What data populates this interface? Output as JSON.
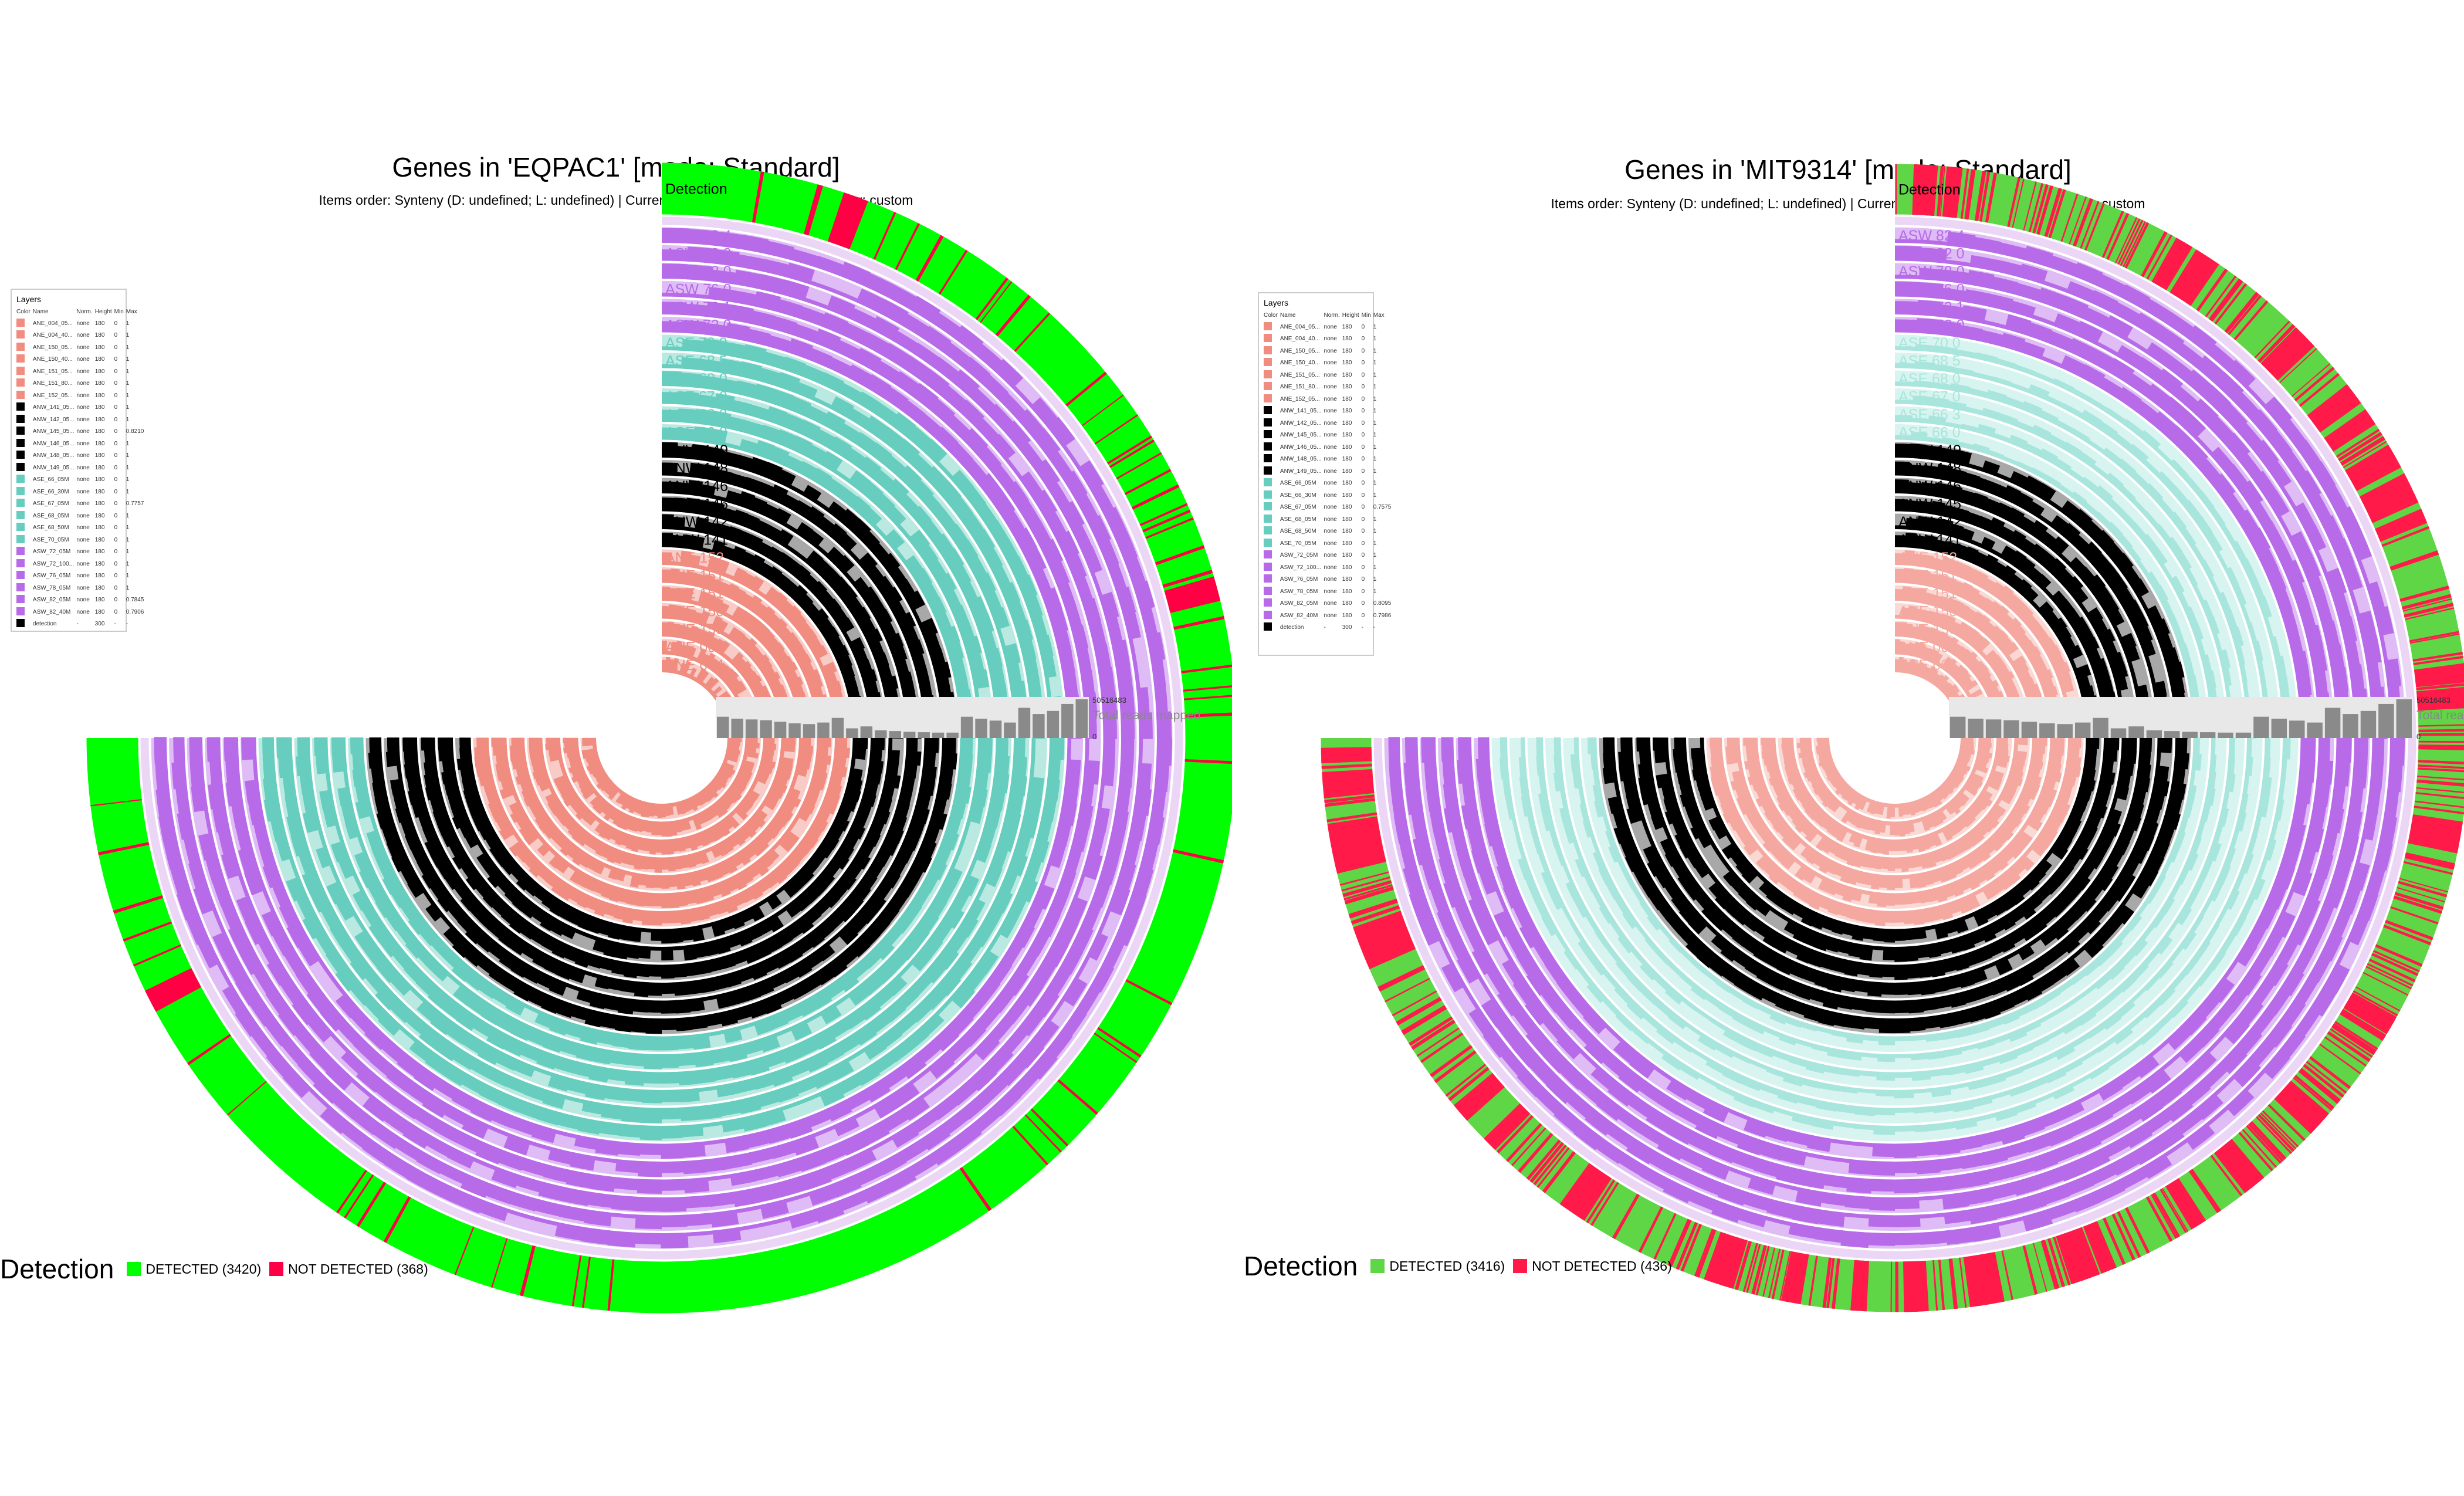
{
  "panels": [
    {
      "title": "Genes in 'EQPAC1' [mode: Standard]",
      "subtitle": "Items order: Synteny (D: undefined; L: undefined) | Current view: detection | Samples order: custom",
      "layers_title": "Layers",
      "layers_header": {
        "color": "Color",
        "name": "Name",
        "norm": "Norm.",
        "height": "Height",
        "min": "Min",
        "max": "Max"
      },
      "layers": [
        {
          "name": "ANE_004_05...",
          "norm": "none",
          "height": "180",
          "min": "0",
          "max": "1",
          "color": "#f08c80"
        },
        {
          "name": "ANE_004_40...",
          "norm": "none",
          "height": "180",
          "min": "0",
          "max": "1",
          "color": "#f08c80"
        },
        {
          "name": "ANE_150_05...",
          "norm": "none",
          "height": "180",
          "min": "0",
          "max": "1",
          "color": "#f08c80"
        },
        {
          "name": "ANE_150_40...",
          "norm": "none",
          "height": "180",
          "min": "0",
          "max": "1",
          "color": "#f08c80"
        },
        {
          "name": "ANE_151_05...",
          "norm": "none",
          "height": "180",
          "min": "0",
          "max": "1",
          "color": "#f08c80"
        },
        {
          "name": "ANE_151_80...",
          "norm": "none",
          "height": "180",
          "min": "0",
          "max": "1",
          "color": "#f08c80"
        },
        {
          "name": "ANE_152_05...",
          "norm": "none",
          "height": "180",
          "min": "0",
          "max": "1",
          "color": "#f08c80"
        },
        {
          "name": "ANW_141_05...",
          "norm": "none",
          "height": "180",
          "min": "0",
          "max": "1",
          "color": "#000000"
        },
        {
          "name": "ANW_142_05...",
          "norm": "none",
          "height": "180",
          "min": "0",
          "max": "1",
          "color": "#000000"
        },
        {
          "name": "ANW_145_05...",
          "norm": "none",
          "height": "180",
          "min": "0",
          "max": "0.8210",
          "color": "#000000"
        },
        {
          "name": "ANW_146_05...",
          "norm": "none",
          "height": "180",
          "min": "0",
          "max": "1",
          "color": "#000000"
        },
        {
          "name": "ANW_148_05...",
          "norm": "none",
          "height": "180",
          "min": "0",
          "max": "1",
          "color": "#000000"
        },
        {
          "name": "ANW_149_05...",
          "norm": "none",
          "height": "180",
          "min": "0",
          "max": "1",
          "color": "#000000"
        },
        {
          "name": "ASE_66_05M",
          "norm": "none",
          "height": "180",
          "min": "0",
          "max": "1",
          "color": "#66cdbf"
        },
        {
          "name": "ASE_66_30M",
          "norm": "none",
          "height": "180",
          "min": "0",
          "max": "1",
          "color": "#66cdbf"
        },
        {
          "name": "ASE_67_05M",
          "norm": "none",
          "height": "180",
          "min": "0",
          "max": "0.7757",
          "color": "#66cdbf"
        },
        {
          "name": "ASE_68_05M",
          "norm": "none",
          "height": "180",
          "min": "0",
          "max": "1",
          "color": "#66cdbf"
        },
        {
          "name": "ASE_68_50M",
          "norm": "none",
          "height": "180",
          "min": "0",
          "max": "1",
          "color": "#66cdbf"
        },
        {
          "name": "ASE_70_05M",
          "norm": "none",
          "height": "180",
          "min": "0",
          "max": "1",
          "color": "#66cdbf"
        },
        {
          "name": "ASW_72_05M",
          "norm": "none",
          "height": "180",
          "min": "0",
          "max": "1",
          "color": "#b86be8"
        },
        {
          "name": "ASW_72_100...",
          "norm": "none",
          "height": "180",
          "min": "0",
          "max": "1",
          "color": "#b86be8"
        },
        {
          "name": "ASW_76_05M",
          "norm": "none",
          "height": "180",
          "min": "0",
          "max": "1",
          "color": "#b86be8"
        },
        {
          "name": "ASW_78_05M",
          "norm": "none",
          "height": "180",
          "min": "0",
          "max": "1",
          "color": "#b86be8"
        },
        {
          "name": "ASW_82_05M",
          "norm": "none",
          "height": "180",
          "min": "0",
          "max": "0.7845",
          "color": "#b86be8"
        },
        {
          "name": "ASW_82_40M",
          "norm": "none",
          "height": "180",
          "min": "0",
          "max": "0.7906",
          "color": "#b86be8"
        },
        {
          "name": "detection",
          "norm": "-",
          "height": "300",
          "min": "-",
          "max": "-",
          "color": "#000000"
        }
      ],
      "layer_labels": [
        "Detection",
        "ASW 82 4",
        "ASW 82 0",
        "ASW 78 0",
        "ASW 76 0",
        "ASW 72 1",
        "ASW 72 0",
        "ASE 70 0",
        "ASE 68 5",
        "ASE 68 0",
        "ASE 67 0",
        "ASE 66 3",
        "ASE 66 0",
        "ANW 149",
        "ANW 148",
        "ANW 146",
        "ANW 145",
        "ANW 142",
        "ANW 141",
        "ANE 152",
        "ANE 151",
        "ANE 151",
        "ANE 150",
        "ANE 150",
        "ANE 004",
        "ANE 004"
      ],
      "total_reads_max": "50516483",
      "total_reads_min": "0",
      "total_reads_label": "Total reads mapped",
      "bar_values": [
        0.55,
        0.5,
        0.48,
        0.46,
        0.42,
        0.38,
        0.36,
        0.4,
        0.52,
        0.25,
        0.3,
        0.2,
        0.18,
        0.16,
        0.15,
        0.14,
        0.14,
        0.55,
        0.5,
        0.45,
        0.4,
        0.78,
        0.62,
        0.7,
        0.88,
        1.0
      ],
      "detection_title": "Detection",
      "detected_label": "DETECTED (3420)",
      "not_detected_label": "NOT DETECTED (368)",
      "colors": {
        "detected": "#00ff00",
        "not_detected": "#ff0044",
        "ane": "#f08c80",
        "anw": "#000000",
        "ase": "#66cdbf",
        "asw": "#b86be8"
      }
    },
    {
      "title": "Genes in 'MIT9314' [mode: Standard]",
      "subtitle": "Items order: Synteny (D: undefined; L: undefined) | Current view: detection | Samples order: custom",
      "layers_title": "Layers",
      "layers_header": {
        "color": "Color",
        "name": "Name",
        "norm": "Norm.",
        "height": "Height",
        "min": "Min",
        "max": "Max"
      },
      "layers": [
        {
          "name": "ANE_004_05...",
          "norm": "none",
          "height": "180",
          "min": "0",
          "max": "1",
          "color": "#f08c80"
        },
        {
          "name": "ANE_004_40...",
          "norm": "none",
          "height": "180",
          "min": "0",
          "max": "1",
          "color": "#f08c80"
        },
        {
          "name": "ANE_150_05...",
          "norm": "none",
          "height": "180",
          "min": "0",
          "max": "1",
          "color": "#f08c80"
        },
        {
          "name": "ANE_150_40...",
          "norm": "none",
          "height": "180",
          "min": "0",
          "max": "1",
          "color": "#f08c80"
        },
        {
          "name": "ANE_151_05...",
          "norm": "none",
          "height": "180",
          "min": "0",
          "max": "1",
          "color": "#f08c80"
        },
        {
          "name": "ANE_151_80...",
          "norm": "none",
          "height": "180",
          "min": "0",
          "max": "1",
          "color": "#f08c80"
        },
        {
          "name": "ANE_152_05...",
          "norm": "none",
          "height": "180",
          "min": "0",
          "max": "1",
          "color": "#f08c80"
        },
        {
          "name": "ANW_141_05...",
          "norm": "none",
          "height": "180",
          "min": "0",
          "max": "1",
          "color": "#000000"
        },
        {
          "name": "ANW_142_05...",
          "norm": "none",
          "height": "180",
          "min": "0",
          "max": "1",
          "color": "#000000"
        },
        {
          "name": "ANW_145_05...",
          "norm": "none",
          "height": "180",
          "min": "0",
          "max": "1",
          "color": "#000000"
        },
        {
          "name": "ANW_146_05...",
          "norm": "none",
          "height": "180",
          "min": "0",
          "max": "1",
          "color": "#000000"
        },
        {
          "name": "ANW_148_05...",
          "norm": "none",
          "height": "180",
          "min": "0",
          "max": "1",
          "color": "#000000"
        },
        {
          "name": "ANW_149_05...",
          "norm": "none",
          "height": "180",
          "min": "0",
          "max": "1",
          "color": "#000000"
        },
        {
          "name": "ASE_66_05M",
          "norm": "none",
          "height": "180",
          "min": "0",
          "max": "1",
          "color": "#66cdbf"
        },
        {
          "name": "ASE_66_30M",
          "norm": "none",
          "height": "180",
          "min": "0",
          "max": "1",
          "color": "#66cdbf"
        },
        {
          "name": "ASE_67_05M",
          "norm": "none",
          "height": "180",
          "min": "0",
          "max": "0.7575",
          "color": "#66cdbf"
        },
        {
          "name": "ASE_68_05M",
          "norm": "none",
          "height": "180",
          "min": "0",
          "max": "1",
          "color": "#66cdbf"
        },
        {
          "name": "ASE_68_50M",
          "norm": "none",
          "height": "180",
          "min": "0",
          "max": "1",
          "color": "#66cdbf"
        },
        {
          "name": "ASE_70_05M",
          "norm": "none",
          "height": "180",
          "min": "0",
          "max": "1",
          "color": "#66cdbf"
        },
        {
          "name": "ASW_72_05M",
          "norm": "none",
          "height": "180",
          "min": "0",
          "max": "1",
          "color": "#b86be8"
        },
        {
          "name": "ASW_72_100...",
          "norm": "none",
          "height": "180",
          "min": "0",
          "max": "1",
          "color": "#b86be8"
        },
        {
          "name": "ASW_76_05M",
          "norm": "none",
          "height": "180",
          "min": "0",
          "max": "1",
          "color": "#b86be8"
        },
        {
          "name": "ASW_78_05M",
          "norm": "none",
          "height": "180",
          "min": "0",
          "max": "1",
          "color": "#b86be8"
        },
        {
          "name": "ASW_82_05M",
          "norm": "none",
          "height": "180",
          "min": "0",
          "max": "0.8095",
          "color": "#b86be8"
        },
        {
          "name": "ASW_82_40M",
          "norm": "none",
          "height": "180",
          "min": "0",
          "max": "0.7986",
          "color": "#b86be8"
        },
        {
          "name": "detection",
          "norm": "-",
          "height": "300",
          "min": "-",
          "max": "-",
          "color": "#000000"
        }
      ],
      "layer_labels": [
        "Detection",
        "ASW 82 4",
        "ASW 82 0",
        "ASW 78 0",
        "ASW 76 0",
        "ASW 72 1",
        "ASW 72 0",
        "ASE 70 0",
        "ASE 68 5",
        "ASE 68 0",
        "ASE 67 0",
        "ASE 66 3",
        "ASE 66 0",
        "ANW 149",
        "ANW 148",
        "ANW 146",
        "ANW 145",
        "ANW 142",
        "ANW 141",
        "ANE 152",
        "ANE 151",
        "ANE 151",
        "ANE 150",
        "ANE 150",
        "ANE 004",
        "ANE 004"
      ],
      "total_reads_max": "50516483",
      "total_reads_min": "0",
      "total_reads_label": "Total reads mapped",
      "bar_values": [
        0.55,
        0.5,
        0.48,
        0.46,
        0.42,
        0.38,
        0.36,
        0.4,
        0.52,
        0.25,
        0.3,
        0.2,
        0.18,
        0.16,
        0.15,
        0.14,
        0.14,
        0.55,
        0.5,
        0.45,
        0.4,
        0.78,
        0.62,
        0.7,
        0.88,
        1.0
      ],
      "detection_title": "Detection",
      "detected_label": "DETECTED (3416)",
      "not_detected_label": "NOT DETECTED (436)",
      "colors": {
        "detected": "#5fd645",
        "not_detected": "#ff1a4a",
        "ane": "#f4a8a0",
        "anw": "#000000",
        "ase": "#a8e6dd",
        "asw": "#b86be8"
      }
    }
  ]
}
